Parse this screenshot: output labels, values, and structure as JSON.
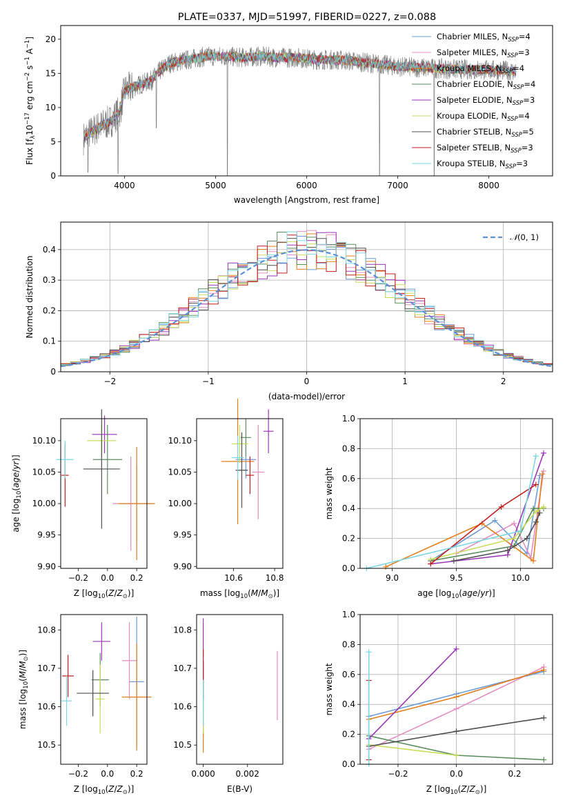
{
  "figure_title": "PLATE=0337, MJD=51997, FIBERID=0227, z=0.088",
  "series_colors": [
    "#6a9bd6",
    "#e48cbf",
    "#e27d1a",
    "#5a8d5e",
    "#9a35b5",
    "#c9dc5a",
    "#4d4d4d",
    "#bf1f1f",
    "#7ad7e3"
  ],
  "chart_data": [
    {
      "id": "spectrum",
      "type": "line",
      "xlabel": "wavelength [Angstrom, rest frame]",
      "ylabel": "Flux [f_λ 10^-17 erg cm^-2 s^-1 A^-1]",
      "xlim": [
        3300,
        8700
      ],
      "ylim": [
        0,
        22
      ],
      "xticks": [
        4000,
        5000,
        6000,
        7000,
        8000
      ],
      "yticks": [
        0,
        5,
        10,
        15,
        20
      ],
      "legend_position": "upper right",
      "legend": [
        {
          "label": "Chabrier MILES, N",
          "sub": "SSP",
          "suffix": "=4"
        },
        {
          "label": "Salpeter MILES, N",
          "sub": "SSP",
          "suffix": "=3"
        },
        {
          "label": "Kroupa MILES, N",
          "sub": "SSP",
          "suffix": "=4"
        },
        {
          "label": "Chabrier ELODIE, N",
          "sub": "SSP",
          "suffix": "=4"
        },
        {
          "label": "Salpeter ELODIE, N",
          "sub": "SSP",
          "suffix": "=3"
        },
        {
          "label": "Kroupa ELODIE, N",
          "sub": "SSP",
          "suffix": "=4"
        },
        {
          "label": "Chabrier STELIB, N",
          "sub": "SSP",
          "suffix": "=5"
        },
        {
          "label": "Salpeter STELIB, N",
          "sub": "SSP",
          "suffix": "=3"
        },
        {
          "label": "Kroupa STELIB, N",
          "sub": "SSP",
          "suffix": "=3"
        }
      ],
      "continuum": [
        [
          3550,
          5.5
        ],
        [
          3700,
          7
        ],
        [
          3850,
          8
        ],
        [
          3950,
          9.5
        ],
        [
          4000,
          12.5
        ],
        [
          4100,
          13
        ],
        [
          4200,
          13.5
        ],
        [
          4300,
          14
        ],
        [
          4400,
          15.5
        ],
        [
          4500,
          16.5
        ],
        [
          4700,
          17
        ],
        [
          4900,
          17.5
        ],
        [
          5100,
          17.5
        ],
        [
          5300,
          17.3
        ],
        [
          5500,
          17.5
        ],
        [
          5700,
          17.3
        ],
        [
          5900,
          17.3
        ],
        [
          6100,
          17
        ],
        [
          6300,
          17
        ],
        [
          6500,
          16.8
        ],
        [
          6700,
          16.5
        ],
        [
          7000,
          16
        ],
        [
          7300,
          15.8
        ],
        [
          7600,
          15.6
        ],
        [
          8000,
          15.5
        ],
        [
          8300,
          15.3
        ]
      ],
      "dips": [
        [
          3600,
          0.5
        ],
        [
          3930,
          0.3
        ],
        [
          5130,
          0
        ],
        [
          6800,
          0
        ],
        [
          7400,
          0
        ],
        [
          4350,
          7
        ]
      ]
    },
    {
      "id": "residual_hist",
      "type": "histogram",
      "xlabel": "(data-model)/error",
      "ylabel": "Normed distribution",
      "xlim": [
        -2.5,
        2.5
      ],
      "ylim": [
        0,
        0.49
      ],
      "xticks": [
        -2,
        -1,
        0,
        1,
        2
      ],
      "yticks": [
        0.0,
        0.1,
        0.2,
        0.3,
        0.4
      ],
      "grid": true,
      "reference_curve": {
        "label": "N(0,1)",
        "mean": 0,
        "sigma": 1
      },
      "legend_position": "upper right"
    },
    {
      "id": "age_vs_Z",
      "type": "errorbar",
      "xlabel": "Z [log10(Z/Z⊙)]",
      "ylabel": "age [log10(age/yr)]",
      "xlim": [
        -0.32,
        0.27
      ],
      "ylim": [
        9.897,
        10.135
      ],
      "xticks": [
        -0.2,
        0.0,
        0.2
      ],
      "xtick_labels": [
        "−0.2",
        "0.0",
        "0.2"
      ],
      "yticks": [
        9.9,
        9.95,
        10.0,
        10.05,
        10.1
      ],
      "ytick_labels": [
        "9.90",
        "9.95",
        "10.00",
        "10.05",
        "10.10"
      ],
      "points": [
        {
          "x": 0.2,
          "xerr": 0.22,
          "y": 10.0,
          "yerr": 0.06,
          "c": 0
        },
        {
          "x": 0.16,
          "xerr": 0.25,
          "y": 10.0,
          "yerr": 0.075,
          "c": 1
        },
        {
          "x": 0.2,
          "xerr": 0.25,
          "y": 10.0,
          "yerr": 0.09,
          "c": 2
        },
        {
          "x": 0.0,
          "xerr": 0.2,
          "y": 10.07,
          "yerr": 0.055,
          "c": 3
        },
        {
          "x": -0.02,
          "xerr": 0.17,
          "y": 10.11,
          "yerr": 0.03,
          "c": 4
        },
        {
          "x": -0.04,
          "xerr": 0.2,
          "y": 10.1,
          "yerr": 0.025,
          "c": 5
        },
        {
          "x": -0.04,
          "xerr": 0.25,
          "y": 10.055,
          "yerr": 0.095,
          "c": 6
        },
        {
          "x": -0.29,
          "xerr": 0.05,
          "y": 10.045,
          "yerr": 0.05,
          "c": 7
        },
        {
          "x": -0.29,
          "xerr": 0.12,
          "y": 10.07,
          "yerr": 0.03,
          "c": 8
        }
      ]
    },
    {
      "id": "age_vs_mass",
      "type": "errorbar",
      "xlabel": "mass [log10(M/M⊙)]",
      "ylabel": "",
      "xlim": [
        10.42,
        10.84
      ],
      "ylim": [
        9.897,
        10.135
      ],
      "xticks": [
        10.6,
        10.8
      ],
      "xtick_labels": [
        "10.6",
        "10.8"
      ],
      "yticks": [
        9.9,
        9.95,
        10.0,
        10.05,
        10.1
      ],
      "ytick_labels": [
        "9.90",
        "9.95",
        "10.00",
        "10.05",
        "10.10"
      ],
      "points": [
        {
          "x": 10.66,
          "xerr": 0.1,
          "y": 10.07,
          "yerr": 0.03,
          "c": 0
        },
        {
          "x": 10.72,
          "xerr": 0.06,
          "y": 10.05,
          "yerr": 0.075,
          "c": 1
        },
        {
          "x": 10.62,
          "xerr": 0.16,
          "y": 10.067,
          "yerr": 0.1,
          "c": 2
        },
        {
          "x": 10.66,
          "xerr": 0.05,
          "y": 10.105,
          "yerr": 0.03,
          "c": 3
        },
        {
          "x": 10.77,
          "xerr": 0.05,
          "y": 10.115,
          "yerr": 0.035,
          "c": 4
        },
        {
          "x": 10.63,
          "xerr": 0.08,
          "y": 10.095,
          "yerr": 0.03,
          "c": 5
        },
        {
          "x": 10.64,
          "xerr": 0.06,
          "y": 10.053,
          "yerr": 0.06,
          "c": 6
        },
        {
          "x": 10.68,
          "xerr": 0.04,
          "y": 10.045,
          "yerr": 0.03,
          "c": 7
        },
        {
          "x": 10.62,
          "xerr": 0.06,
          "y": 10.073,
          "yerr": 0.035,
          "c": 8
        }
      ]
    },
    {
      "id": "weight_vs_age",
      "type": "line",
      "xlabel": "age [log10(age/yr)]",
      "ylabel": "mass weight",
      "xlim": [
        8.75,
        10.25
      ],
      "ylim": [
        0,
        1.0
      ],
      "xticks": [
        9.0,
        9.5,
        10.0
      ],
      "xtick_labels": [
        "9.0",
        "9.5",
        "10.0"
      ],
      "yticks": [
        0,
        0.2,
        0.4,
        0.6,
        0.8,
        1.0
      ],
      "ytick_labels": [
        "0.0",
        "0.2",
        "0.4",
        "0.6",
        "0.8",
        "1.0"
      ],
      "grid": true,
      "series": [
        {
          "c": 0,
          "points": [
            [
              9.3,
              0.05
            ],
            [
              9.8,
              0.32
            ],
            [
              10.05,
              0.1
            ],
            [
              10.15,
              0.62
            ]
          ]
        },
        {
          "c": 1,
          "points": [
            [
              9.5,
              0.1
            ],
            [
              9.95,
              0.3
            ],
            [
              10.08,
              0.07
            ],
            [
              10.18,
              0.65
            ]
          ]
        },
        {
          "c": 2,
          "points": [
            [
              8.95,
              0.01
            ],
            [
              9.7,
              0.3
            ],
            [
              10.1,
              0.05
            ],
            [
              10.17,
              0.63
            ]
          ]
        },
        {
          "c": 3,
          "points": [
            [
              9.3,
              0.05
            ],
            [
              9.95,
              0.15
            ],
            [
              10.1,
              0.4
            ],
            [
              10.18,
              0.4
            ]
          ]
        },
        {
          "c": 4,
          "points": [
            [
              9.3,
              0.03
            ],
            [
              9.9,
              0.09
            ],
            [
              10.18,
              0.77
            ]
          ]
        },
        {
          "c": 5,
          "points": [
            [
              9.3,
              0.06
            ],
            [
              9.95,
              0.2
            ],
            [
              10.12,
              0.38
            ],
            [
              10.18,
              0.41
            ]
          ]
        },
        {
          "c": 6,
          "points": [
            [
              9.48,
              0.05
            ],
            [
              9.9,
              0.12
            ],
            [
              10.05,
              0.2
            ],
            [
              10.12,
              0.31
            ],
            [
              10.15,
              0.37
            ]
          ]
        },
        {
          "c": 7,
          "points": [
            [
              9.3,
              0.03
            ],
            [
              9.85,
              0.41
            ],
            [
              10.12,
              0.56
            ]
          ]
        },
        {
          "c": 8,
          "points": [
            [
              8.8,
              0.0
            ],
            [
              10.0,
              0.25
            ],
            [
              10.12,
              0.75
            ]
          ]
        }
      ]
    },
    {
      "id": "mass_vs_Z",
      "type": "errorbar",
      "xlabel": "Z [log10(Z/Z⊙)]",
      "ylabel": "mass [log10(M/M⊙)]",
      "xlim": [
        -0.32,
        0.27
      ],
      "ylim": [
        10.45,
        10.84
      ],
      "xticks": [
        -0.2,
        0.0,
        0.2
      ],
      "xtick_labels": [
        "−0.2",
        "0.0",
        "0.2"
      ],
      "yticks": [
        10.5,
        10.6,
        10.7,
        10.8
      ],
      "ytick_labels": [
        "10.5",
        "10.6",
        "10.7",
        "10.8"
      ],
      "points": [
        {
          "x": 0.2,
          "xerr": 0.1,
          "y": 10.665,
          "yerr": 0.17,
          "c": 0
        },
        {
          "x": 0.15,
          "xerr": 0.1,
          "y": 10.72,
          "yerr": 0.1,
          "c": 1
        },
        {
          "x": 0.2,
          "xerr": 0.2,
          "y": 10.625,
          "yerr": 0.14,
          "c": 2
        },
        {
          "x": -0.05,
          "xerr": 0.12,
          "y": 10.67,
          "yerr": 0.07,
          "c": 3
        },
        {
          "x": -0.04,
          "xerr": 0.12,
          "y": 10.77,
          "yerr": 0.05,
          "c": 4
        },
        {
          "x": -0.05,
          "xerr": 0.06,
          "y": 10.62,
          "yerr": 0.09,
          "c": 5
        },
        {
          "x": -0.1,
          "xerr": 0.22,
          "y": 10.635,
          "yerr": 0.06,
          "c": 6
        },
        {
          "x": -0.27,
          "xerr": 0.08,
          "y": 10.68,
          "yerr": 0.055,
          "c": 7
        },
        {
          "x": -0.28,
          "xerr": 0.07,
          "y": 10.615,
          "yerr": 0.065,
          "c": 8
        }
      ]
    },
    {
      "id": "mass_vs_EBV",
      "type": "errorbar",
      "xlabel": "E(B-V)",
      "ylabel": "",
      "xlim": [
        -0.0003,
        0.0036
      ],
      "ylim": [
        10.45,
        10.84
      ],
      "xticks": [
        0.0,
        0.002
      ],
      "xtick_labels": [
        "0.000",
        "0.002"
      ],
      "yticks": [
        10.5,
        10.6,
        10.7,
        10.8
      ],
      "ytick_labels": [
        "10.5",
        "10.6",
        "10.7",
        "10.8"
      ],
      "points": [
        {
          "x": 0.0,
          "xerr": 0,
          "y": 10.62,
          "yerr": 0.1,
          "c": 0
        },
        {
          "x": 0.00335,
          "xerr": 0,
          "y": 10.655,
          "yerr": 0.09,
          "c": 1
        },
        {
          "x": 0.0,
          "xerr": 0,
          "y": 10.55,
          "yerr": 0.07,
          "c": 2
        },
        {
          "x": 0.0,
          "xerr": 0,
          "y": 10.65,
          "yerr": 0.06,
          "c": 3
        },
        {
          "x": 0.0,
          "xerr": 0,
          "y": 10.78,
          "yerr": 0.05,
          "c": 4
        },
        {
          "x": 0.0,
          "xerr": 0,
          "y": 10.6,
          "yerr": 0.07,
          "c": 5
        },
        {
          "x": 0.0,
          "xerr": 0,
          "y": 10.67,
          "yerr": 0.05,
          "c": 6
        },
        {
          "x": 0.0,
          "xerr": 0,
          "y": 10.7,
          "yerr": 0.05,
          "c": 7
        },
        {
          "x": 0.0,
          "xerr": 0,
          "y": 10.61,
          "yerr": 0.06,
          "c": 8
        }
      ]
    },
    {
      "id": "weight_vs_Z",
      "type": "line",
      "xlabel": "Z [log10(Z/Z⊙)]",
      "ylabel": "mass weight",
      "xlim": [
        -0.33,
        0.33
      ],
      "ylim": [
        0,
        1.0
      ],
      "xticks": [
        -0.2,
        0.0,
        0.2
      ],
      "xtick_labels": [
        "−0.2",
        "0.0",
        "0.2"
      ],
      "yticks": [
        0,
        0.2,
        0.4,
        0.6,
        0.8,
        1.0
      ],
      "ytick_labels": [
        "0.0",
        "0.2",
        "0.4",
        "0.6",
        "0.8",
        "1.0"
      ],
      "grid": true,
      "series": [
        {
          "c": 0,
          "points": [
            [
              -0.3,
              0.32
            ],
            [
              0.0,
              0.47
            ],
            [
              0.3,
              0.62
            ]
          ]
        },
        {
          "c": 1,
          "points": [
            [
              -0.3,
              0.1
            ],
            [
              0.0,
              0.37
            ],
            [
              0.3,
              0.65
            ]
          ]
        },
        {
          "c": 2,
          "points": [
            [
              -0.3,
              0.3
            ],
            [
              0.0,
              0.45
            ],
            [
              0.3,
              0.63
            ]
          ]
        },
        {
          "c": 3,
          "points": [
            [
              -0.3,
              0.19
            ],
            [
              0.0,
              0.06
            ],
            [
              0.3,
              0.03
            ]
          ]
        },
        {
          "c": 4,
          "points": [
            [
              -0.3,
              0.17
            ],
            [
              0.0,
              0.77
            ]
          ]
        },
        {
          "c": 5,
          "points": [
            [
              -0.3,
              0.13
            ],
            [
              0.0,
              0.06
            ]
          ]
        },
        {
          "c": 6,
          "points": [
            [
              -0.3,
              0.12
            ],
            [
              0.0,
              0.22
            ],
            [
              0.3,
              0.31
            ]
          ]
        },
        {
          "c": 7,
          "points": [
            [
              -0.3,
              0.56
            ],
            [
              -0.3,
              0.03
            ]
          ]
        },
        {
          "c": 8,
          "points": [
            [
              -0.3,
              0.75
            ],
            [
              -0.3,
              0.0
            ]
          ]
        }
      ]
    }
  ]
}
